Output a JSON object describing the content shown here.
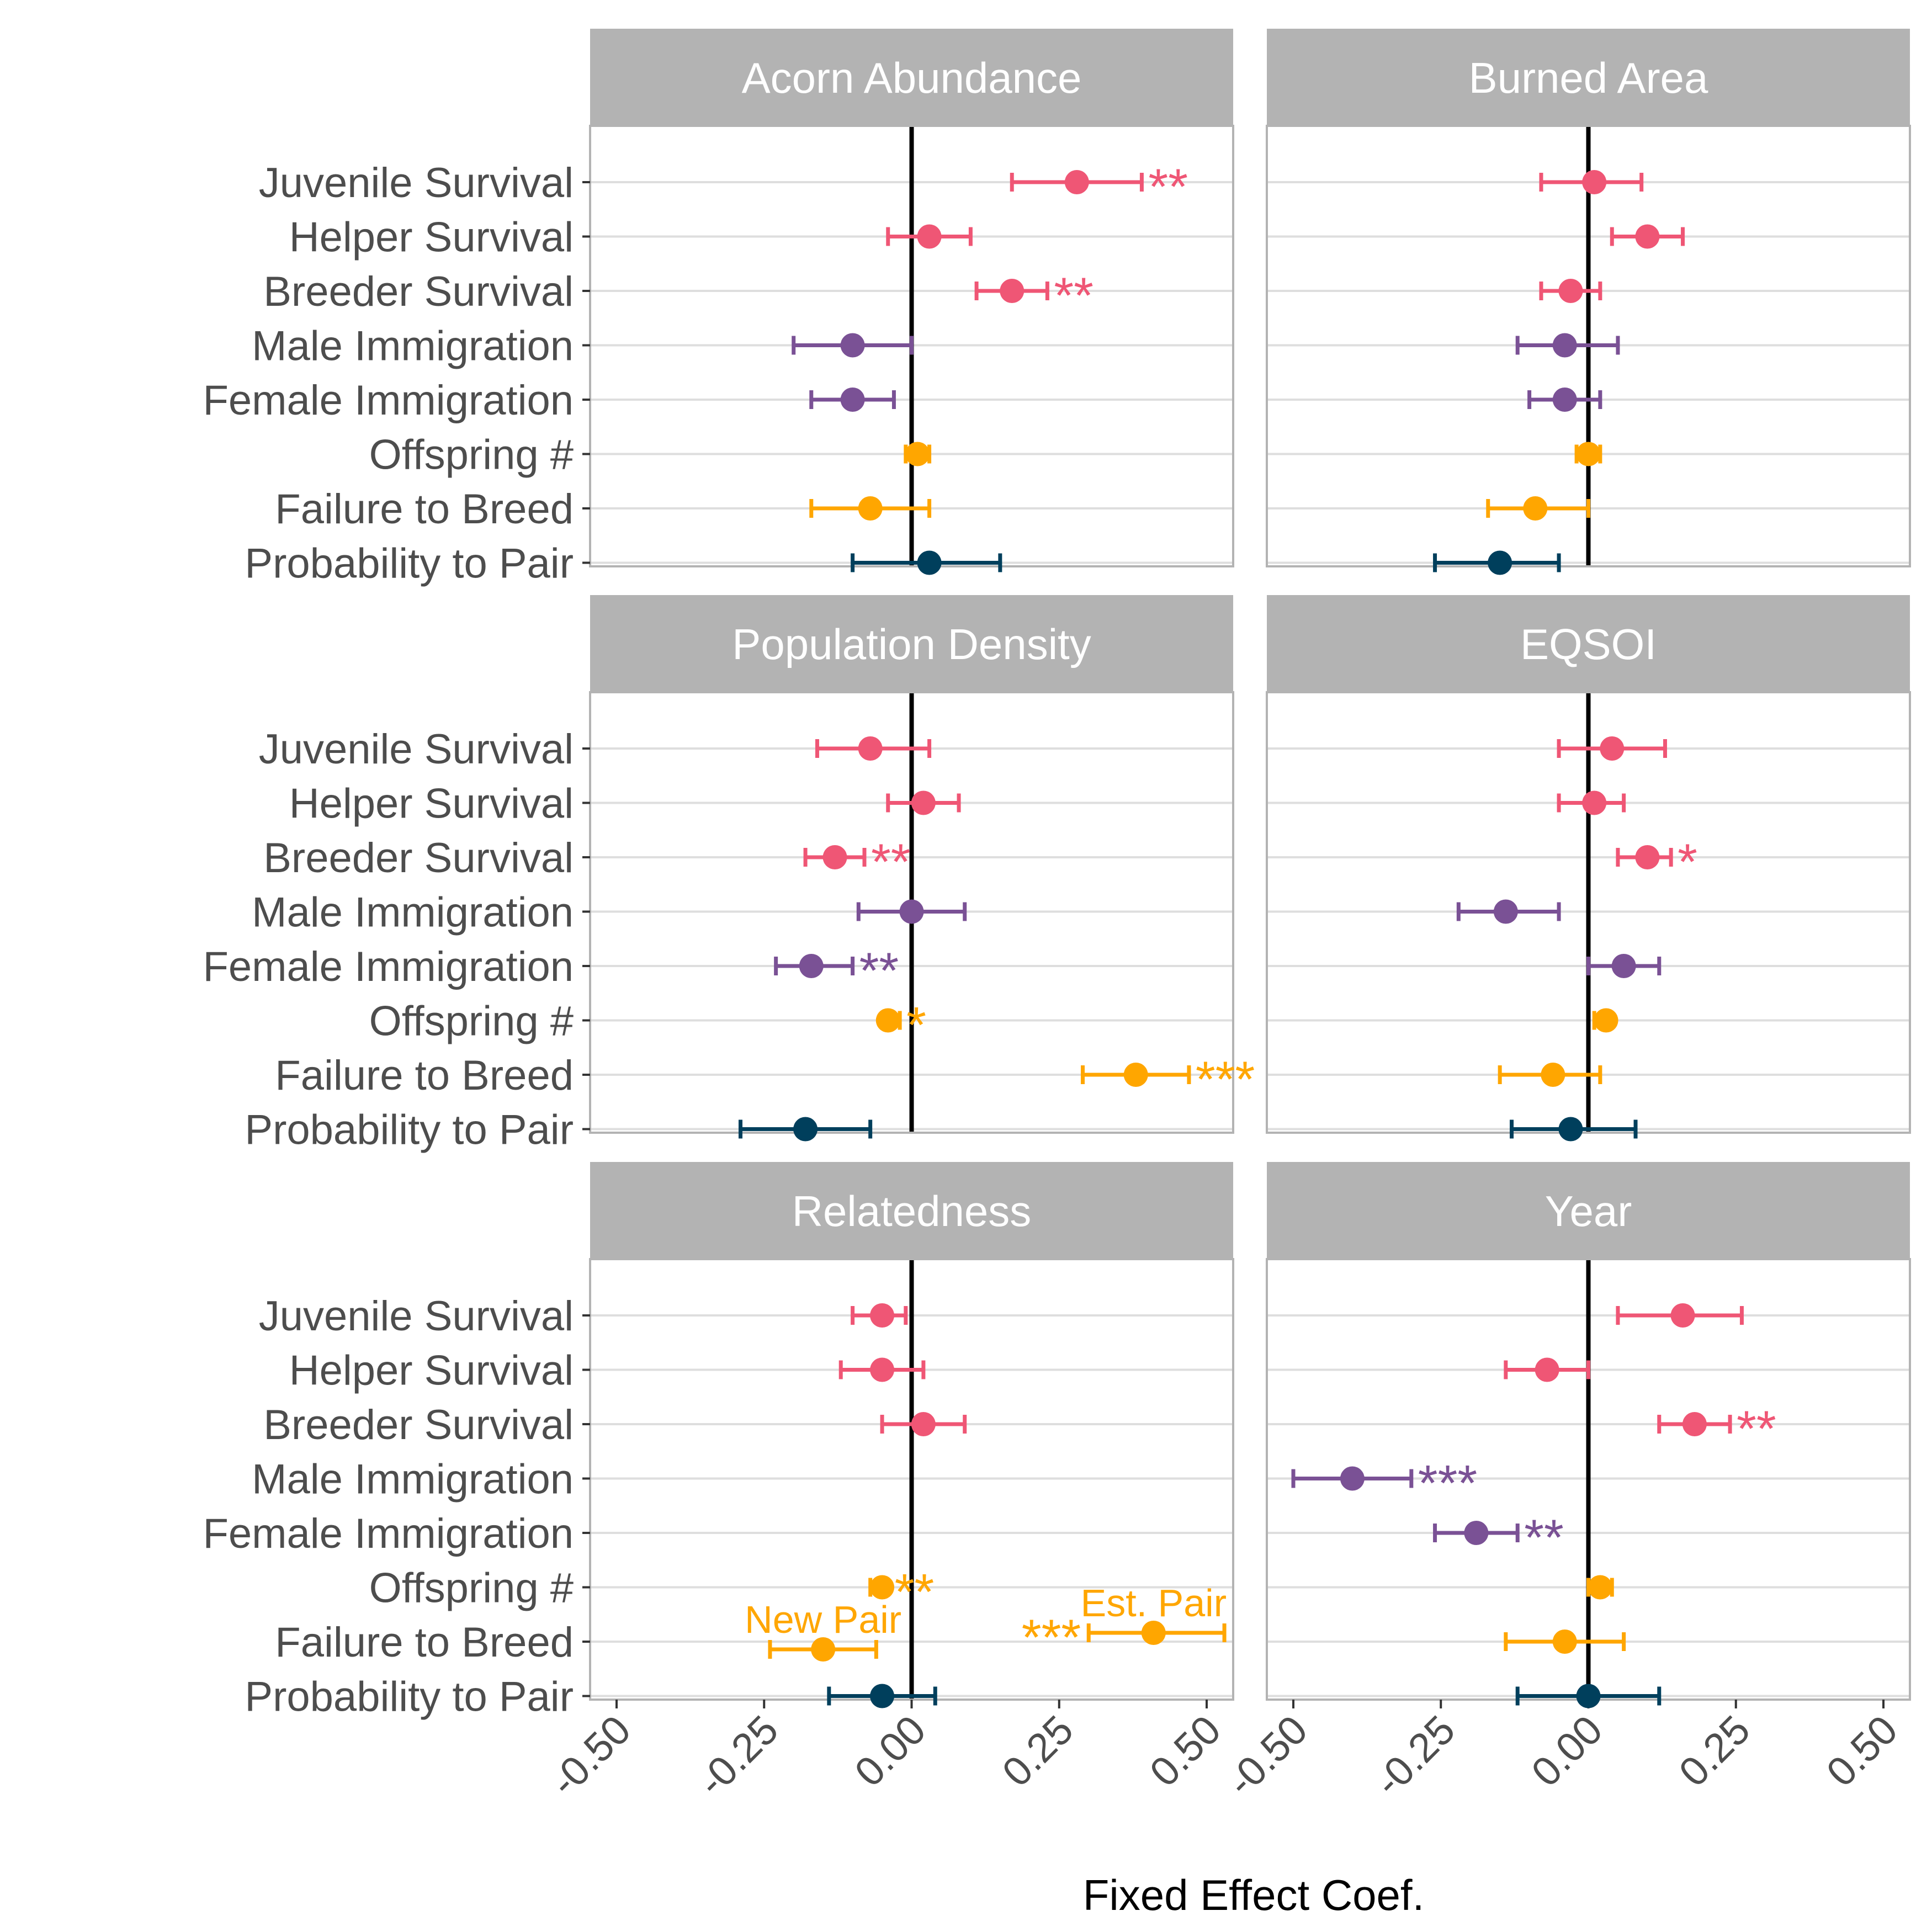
{
  "chart_data": {
    "type": "scatter",
    "subtype": "faceted coefficient plot with confidence-interval error bars",
    "xlabel": "Fixed Effect Coef.",
    "xlim": [
      -0.5,
      0.5
    ],
    "x_ticks": [
      -0.5,
      -0.25,
      0,
      0.25,
      0.5
    ],
    "x_tick_labels": [
      "-0.50",
      "-0.25",
      "0.00",
      "0.25",
      "0.50"
    ],
    "reference_line": 0,
    "grid": "horizontal major gridlines only",
    "rows": [
      "Juvenile Survival",
      "Helper Survival",
      "Breeder Survival",
      "Male Immigration",
      "Female Immigration",
      "Offspring #",
      "Failure to Breed",
      "Probability to Pair"
    ],
    "colors": {
      "Juvenile Survival": "#EF5675",
      "Helper Survival": "#EF5675",
      "Breeder Survival": "#EF5675",
      "Male Immigration": "#7A5195",
      "Female Immigration": "#7A5195",
      "Offspring #": "#FFA600",
      "Failure to Breed": "#FFA600",
      "Probability to Pair": "#003F5C"
    },
    "panel_layout": {
      "rows": 3,
      "cols": 2
    },
    "panels": [
      {
        "title": "Acorn Abundance",
        "points": [
          {
            "row": "Juvenile Survival",
            "est": 0.28,
            "lo": 0.17,
            "hi": 0.39,
            "sig": "**"
          },
          {
            "row": "Helper Survival",
            "est": 0.03,
            "lo": -0.04,
            "hi": 0.1,
            "sig": ""
          },
          {
            "row": "Breeder Survival",
            "est": 0.17,
            "lo": 0.11,
            "hi": 0.23,
            "sig": "**"
          },
          {
            "row": "Male Immigration",
            "est": -0.1,
            "lo": -0.2,
            "hi": 0.0,
            "sig": ""
          },
          {
            "row": "Female Immigration",
            "est": -0.1,
            "lo": -0.17,
            "hi": -0.03,
            "sig": ""
          },
          {
            "row": "Offspring #",
            "est": 0.01,
            "lo": -0.01,
            "hi": 0.03,
            "sig": ""
          },
          {
            "row": "Failure to Breed",
            "est": -0.07,
            "lo": -0.17,
            "hi": 0.03,
            "sig": ""
          },
          {
            "row": "Probability to Pair",
            "est": 0.03,
            "lo": -0.1,
            "hi": 0.15,
            "sig": ""
          }
        ]
      },
      {
        "title": "Burned Area",
        "points": [
          {
            "row": "Juvenile Survival",
            "est": 0.01,
            "lo": -0.08,
            "hi": 0.09,
            "sig": ""
          },
          {
            "row": "Helper Survival",
            "est": 0.1,
            "lo": 0.04,
            "hi": 0.16,
            "sig": ""
          },
          {
            "row": "Breeder Survival",
            "est": -0.03,
            "lo": -0.08,
            "hi": 0.02,
            "sig": ""
          },
          {
            "row": "Male Immigration",
            "est": -0.04,
            "lo": -0.12,
            "hi": 0.05,
            "sig": ""
          },
          {
            "row": "Female Immigration",
            "est": -0.04,
            "lo": -0.1,
            "hi": 0.02,
            "sig": ""
          },
          {
            "row": "Offspring #",
            "est": 0.0,
            "lo": -0.02,
            "hi": 0.02,
            "sig": ""
          },
          {
            "row": "Failure to Breed",
            "est": -0.09,
            "lo": -0.17,
            "hi": 0.0,
            "sig": ""
          },
          {
            "row": "Probability to Pair",
            "est": -0.15,
            "lo": -0.26,
            "hi": -0.05,
            "sig": ""
          }
        ]
      },
      {
        "title": "Population Density",
        "points": [
          {
            "row": "Juvenile Survival",
            "est": -0.07,
            "lo": -0.16,
            "hi": 0.03,
            "sig": ""
          },
          {
            "row": "Helper Survival",
            "est": 0.02,
            "lo": -0.04,
            "hi": 0.08,
            "sig": ""
          },
          {
            "row": "Breeder Survival",
            "est": -0.13,
            "lo": -0.18,
            "hi": -0.08,
            "sig": "**"
          },
          {
            "row": "Male Immigration",
            "est": 0.0,
            "lo": -0.09,
            "hi": 0.09,
            "sig": ""
          },
          {
            "row": "Female Immigration",
            "est": -0.17,
            "lo": -0.23,
            "hi": -0.1,
            "sig": "**"
          },
          {
            "row": "Offspring #",
            "est": -0.04,
            "lo": -0.05,
            "hi": -0.02,
            "sig": "*"
          },
          {
            "row": "Failure to Breed",
            "est": 0.38,
            "lo": 0.29,
            "hi": 0.47,
            "sig": "***"
          },
          {
            "row": "Probability to Pair",
            "est": -0.18,
            "lo": -0.29,
            "hi": -0.07,
            "sig": ""
          }
        ]
      },
      {
        "title": "EQSOI",
        "points": [
          {
            "row": "Juvenile Survival",
            "est": 0.04,
            "lo": -0.05,
            "hi": 0.13,
            "sig": ""
          },
          {
            "row": "Helper Survival",
            "est": 0.01,
            "lo": -0.05,
            "hi": 0.06,
            "sig": ""
          },
          {
            "row": "Breeder Survival",
            "est": 0.1,
            "lo": 0.05,
            "hi": 0.14,
            "sig": "*"
          },
          {
            "row": "Male Immigration",
            "est": -0.14,
            "lo": -0.22,
            "hi": -0.05,
            "sig": ""
          },
          {
            "row": "Female Immigration",
            "est": 0.06,
            "lo": 0.0,
            "hi": 0.12,
            "sig": ""
          },
          {
            "row": "Offspring #",
            "est": 0.03,
            "lo": 0.01,
            "hi": 0.04,
            "sig": ""
          },
          {
            "row": "Failure to Breed",
            "est": -0.06,
            "lo": -0.15,
            "hi": 0.02,
            "sig": ""
          },
          {
            "row": "Probability to Pair",
            "est": -0.03,
            "lo": -0.13,
            "hi": 0.08,
            "sig": ""
          }
        ]
      },
      {
        "title": "Relatedness",
        "points": [
          {
            "row": "Juvenile Survival",
            "est": -0.05,
            "lo": -0.1,
            "hi": -0.01,
            "sig": ""
          },
          {
            "row": "Helper Survival",
            "est": -0.05,
            "lo": -0.12,
            "hi": 0.02,
            "sig": ""
          },
          {
            "row": "Breeder Survival",
            "est": 0.02,
            "lo": -0.05,
            "hi": 0.09,
            "sig": ""
          },
          {
            "row": "Offspring #",
            "est": -0.05,
            "lo": -0.07,
            "hi": -0.04,
            "sig": "**"
          },
          {
            "row": "Failure to Breed",
            "est": -0.15,
            "lo": -0.24,
            "hi": -0.06,
            "sig": "",
            "offset": -0.15,
            "note": "New Pair"
          },
          {
            "row": "Failure to Breed",
            "est": 0.41,
            "lo": 0.3,
            "hi": 0.53,
            "sig": "***",
            "offset": 0.18,
            "note": "Est. Pair"
          },
          {
            "row": "Probability to Pair",
            "est": -0.05,
            "lo": -0.14,
            "hi": 0.04,
            "sig": ""
          }
        ]
      },
      {
        "title": "Year",
        "points": [
          {
            "row": "Juvenile Survival",
            "est": 0.16,
            "lo": 0.05,
            "hi": 0.26,
            "sig": ""
          },
          {
            "row": "Helper Survival",
            "est": -0.07,
            "lo": -0.14,
            "hi": 0.0,
            "sig": ""
          },
          {
            "row": "Breeder Survival",
            "est": 0.18,
            "lo": 0.12,
            "hi": 0.24,
            "sig": "**"
          },
          {
            "row": "Male Immigration",
            "est": -0.4,
            "lo": -0.5,
            "hi": -0.3,
            "sig": "***"
          },
          {
            "row": "Female Immigration",
            "est": -0.19,
            "lo": -0.26,
            "hi": -0.12,
            "sig": "**"
          },
          {
            "row": "Offspring #",
            "est": 0.02,
            "lo": 0.0,
            "hi": 0.04,
            "sig": ""
          },
          {
            "row": "Failure to Breed",
            "est": -0.04,
            "lo": -0.14,
            "hi": 0.06,
            "sig": ""
          },
          {
            "row": "Probability to Pair",
            "est": 0.0,
            "lo": -0.12,
            "hi": 0.12,
            "sig": ""
          }
        ]
      }
    ]
  }
}
